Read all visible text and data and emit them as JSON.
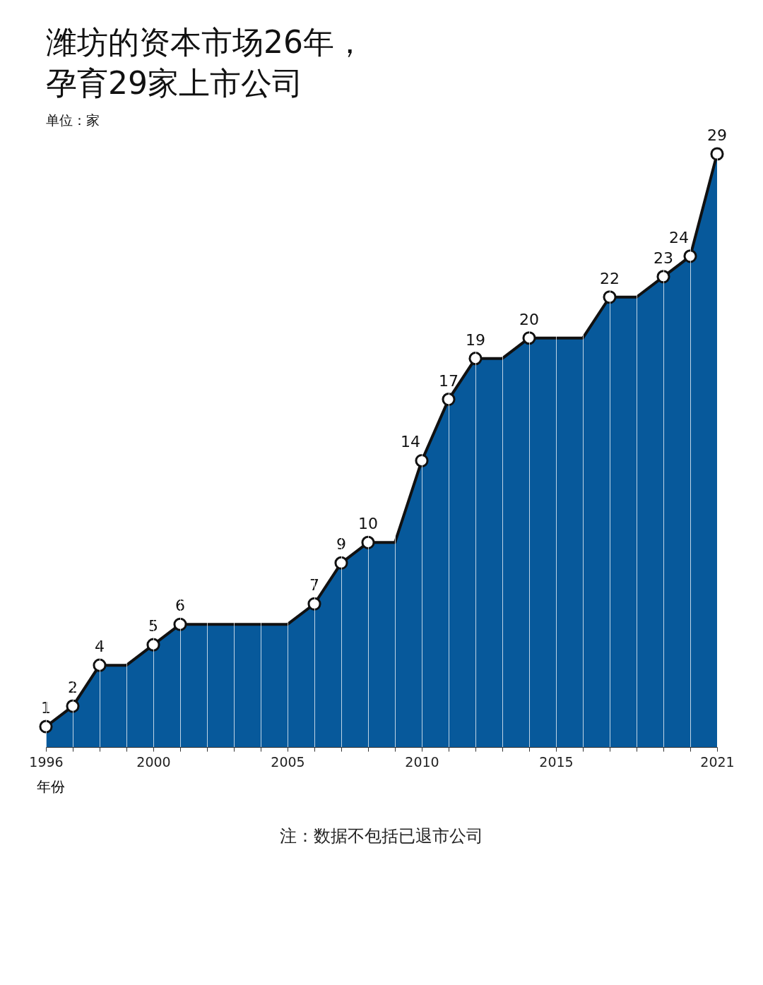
{
  "chart_data": {
    "type": "area",
    "title": "潍坊的资本市场26年，孕育29家上市公司",
    "subtitle": "单位：家",
    "xlabel": "年份",
    "x": [
      1996,
      1997,
      1998,
      1999,
      2000,
      2001,
      2002,
      2003,
      2004,
      2005,
      2006,
      2007,
      2008,
      2009,
      2010,
      2011,
      2012,
      2013,
      2014,
      2015,
      2016,
      2017,
      2018,
      2019,
      2020,
      2021
    ],
    "values": [
      1,
      2,
      4,
      4,
      5,
      6,
      6,
      6,
      6,
      6,
      7,
      9,
      10,
      10,
      14,
      17,
      19,
      19,
      20,
      20,
      20,
      22,
      22,
      23,
      24,
      29
    ],
    "value_labels": [
      "1",
      "2",
      "4",
      null,
      "5",
      "6",
      null,
      null,
      null,
      null,
      "7",
      "9",
      "10",
      null,
      "14",
      "17",
      "19",
      null,
      "20",
      null,
      null,
      "22",
      null,
      "23",
      "24",
      "29"
    ],
    "color": "#07599b",
    "xlim": [
      1996,
      2021
    ],
    "xticks": [
      1996,
      {
        "value": 1997,
        "label": null
      },
      {
        "value": 1998,
        "label": null
      },
      {
        "value": 1999,
        "label": null
      },
      2000,
      {
        "value": 2001,
        "label": null
      },
      {
        "value": 2002,
        "label": null
      },
      {
        "value": 2003,
        "label": null
      },
      {
        "value": 2004,
        "label": null
      },
      2005,
      {
        "value": 2006,
        "label": null
      },
      {
        "value": 2007,
        "label": null
      },
      {
        "value": 2008,
        "label": null
      },
      {
        "value": 2009,
        "label": null
      },
      2010,
      {
        "value": 2011,
        "label": null
      },
      {
        "value": 2012,
        "label": null
      },
      {
        "value": 2013,
        "label": null
      },
      {
        "value": 2014,
        "label": null
      },
      2015,
      {
        "value": 2016,
        "label": null
      },
      {
        "value": 2017,
        "label": null
      },
      {
        "value": 2018,
        "label": null
      },
      {
        "value": 2019,
        "label": null
      },
      {
        "value": 2020,
        "label": null
      },
      2021
    ],
    "grid": "x",
    "marker": "circle",
    "line_style": "solid",
    "annotations": [
      "注：数据不包括已退市公司"
    ]
  }
}
